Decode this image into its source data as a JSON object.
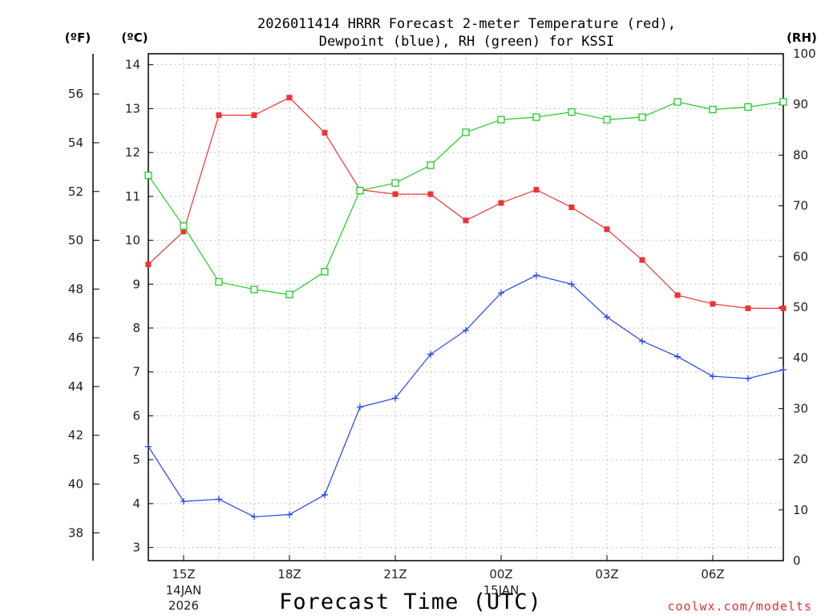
{
  "chart_data": {
    "type": "line",
    "title_line1": "2026011414 HRRR Forecast 2-meter Temperature (red),",
    "title_line2": "Dewpoint (blue), RH (green) for KSSI",
    "xlabel": "Forecast Time (UTC)",
    "credit": "coolwx.com/modelts",
    "units": {
      "fahrenheit": "(ºF)",
      "celsius": "(ºC)",
      "rh": "(RH)"
    },
    "hours": [
      14,
      15,
      16,
      17,
      18,
      19,
      20,
      21,
      22,
      23,
      24,
      25,
      26,
      27,
      28,
      29,
      30,
      31,
      32
    ],
    "xlim": [
      14,
      32
    ],
    "x_ticks": [
      {
        "hour": 15,
        "label": "15Z",
        "date1": "14JAN",
        "date2": "2026"
      },
      {
        "hour": 18,
        "label": "18Z"
      },
      {
        "hour": 21,
        "label": "21Z"
      },
      {
        "hour": 24,
        "label": "00Z",
        "date1": "15JAN"
      },
      {
        "hour": 27,
        "label": "03Z"
      },
      {
        "hour": 30,
        "label": "06Z"
      }
    ],
    "celsius_axis": {
      "ylim": [
        2.7,
        14.25
      ],
      "ticks": [
        "3",
        "4",
        "5",
        "6",
        "7",
        "8",
        "9",
        "10",
        "11",
        "12",
        "13",
        "14"
      ]
    },
    "fahrenheit_axis": {
      "ticks": [
        "38",
        "40",
        "42",
        "44",
        "46",
        "48",
        "50",
        "52",
        "54",
        "56"
      ]
    },
    "rh_axis": {
      "ylim": [
        0,
        100
      ],
      "ticks": [
        "0",
        "10",
        "20",
        "30",
        "40",
        "50",
        "60",
        "70",
        "80",
        "90",
        "100"
      ]
    },
    "series": [
      {
        "name": "Temperature",
        "unit": "C",
        "color": "#ee3333",
        "marker": "filled-square",
        "values": [
          9.45,
          10.2,
          12.85,
          12.85,
          13.25,
          12.45,
          11.15,
          11.05,
          11.05,
          10.45,
          10.85,
          11.15,
          10.75,
          10.25,
          9.55,
          8.75,
          8.55,
          8.45,
          8.45
        ]
      },
      {
        "name": "Dewpoint",
        "unit": "C",
        "color": "#2244ee",
        "marker": "plus",
        "values": [
          5.3,
          4.05,
          4.1,
          3.7,
          3.75,
          4.2,
          6.2,
          6.4,
          7.4,
          7.95,
          8.8,
          9.2,
          9.0,
          8.25,
          7.7,
          7.35,
          6.9,
          6.85,
          7.05
        ]
      },
      {
        "name": "RH",
        "unit": "%",
        "color": "#22cc22",
        "marker": "open-square",
        "values": [
          76,
          66,
          55,
          53.5,
          52.5,
          57,
          73,
          74.5,
          78,
          84.5,
          87,
          87.5,
          88.5,
          87,
          87.5,
          90.5,
          89,
          89.5,
          90.5
        ]
      }
    ]
  }
}
